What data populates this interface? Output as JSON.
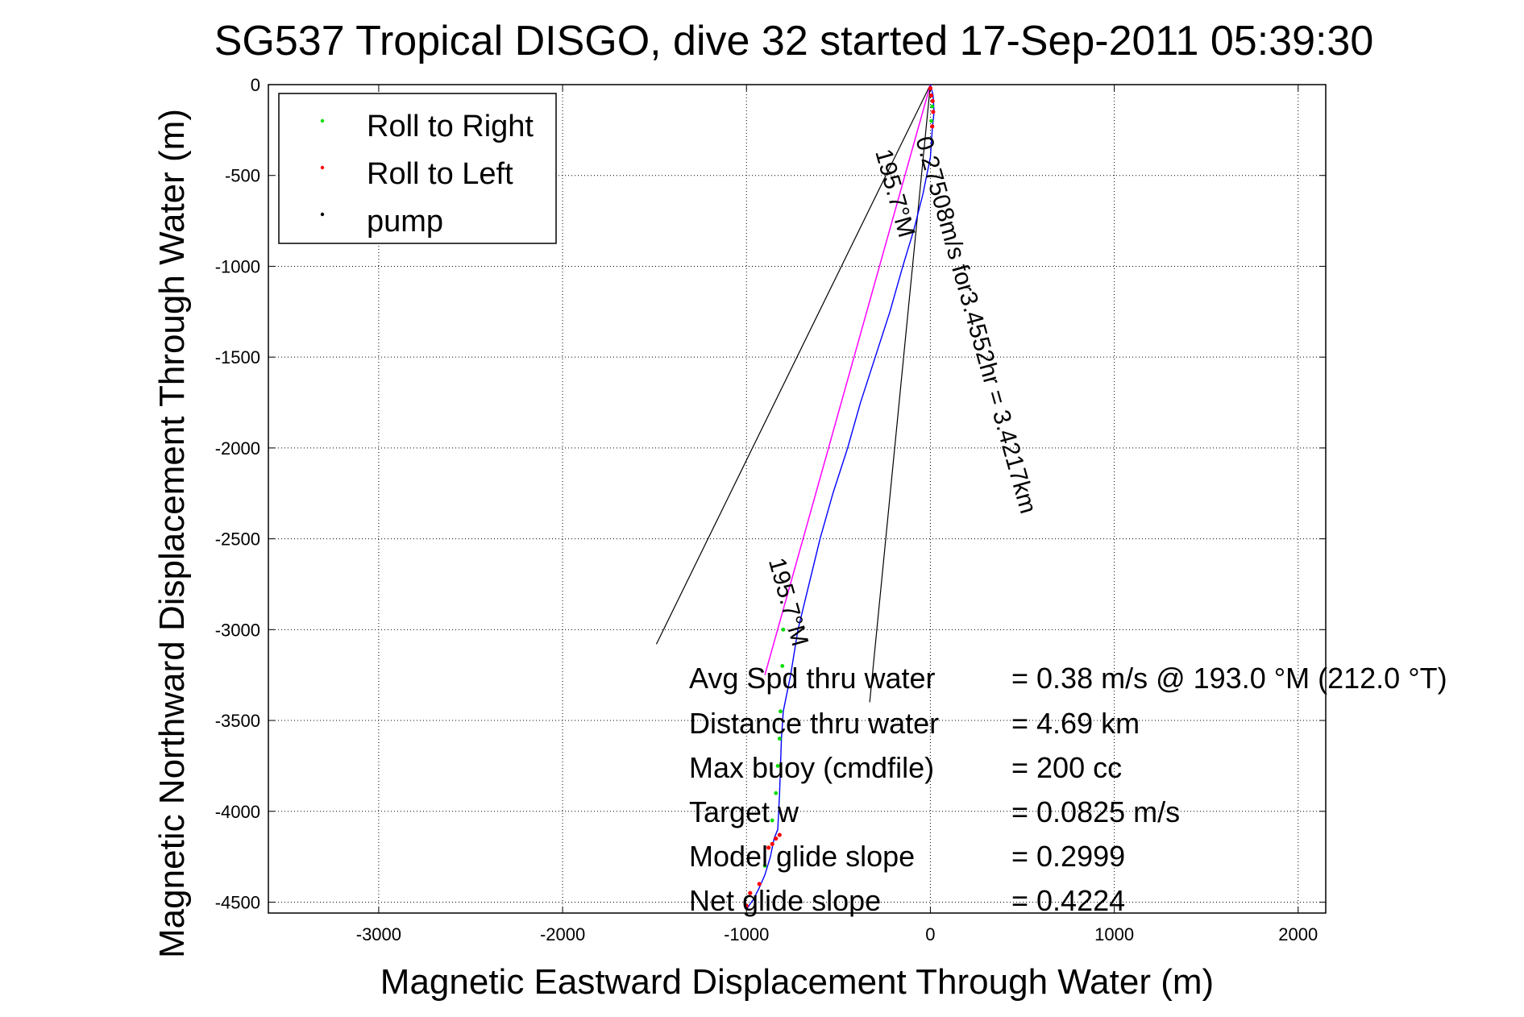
{
  "chart_data": {
    "type": "line",
    "title": "SG537 Tropical DISGO, dive 32 started 17-Sep-2011 05:39:30",
    "xlabel": "Magnetic Eastward Displacement Through Water (m)",
    "ylabel": "Magnetic Northward Displacement Through Water (m)",
    "xlim": [
      -3600,
      2150
    ],
    "ylim": [
      -4560,
      0
    ],
    "xticks": [
      -3000,
      -2000,
      -1000,
      0,
      1000,
      2000
    ],
    "yticks": [
      0,
      -500,
      -1000,
      -1500,
      -2000,
      -2500,
      -3000,
      -3500,
      -4000,
      -4500
    ],
    "grid": true,
    "legend_position": "top-left",
    "legend": [
      {
        "label": "Roll to Right",
        "color": "#00dd00"
      },
      {
        "label": "Roll to Left",
        "color": "#ff0000"
      },
      {
        "label": "pump",
        "color": "#000000"
      }
    ],
    "track": {
      "color": "#0000ff",
      "x": [
        0,
        15,
        20,
        10,
        0,
        -40,
        -90,
        -150,
        -220,
        -300,
        -380,
        -450,
        -530,
        -600,
        -660,
        -720,
        -760,
        -800,
        -810,
        -815,
        -820,
        -825,
        -830,
        -850,
        -870,
        -900,
        -930,
        -960,
        -1000
      ],
      "y": [
        0,
        -60,
        -150,
        -250,
        -400,
        -600,
        -800,
        -1000,
        -1250,
        -1500,
        -1750,
        -2000,
        -2250,
        -2500,
        -2750,
        -3000,
        -3250,
        -3450,
        -3600,
        -3750,
        -3900,
        -4000,
        -4100,
        -4150,
        -4250,
        -4350,
        -4420,
        -4480,
        -4540
      ]
    },
    "model_line": {
      "color": "#ff00ff",
      "x": [
        0,
        -900
      ],
      "y": [
        0,
        -3250
      ]
    },
    "roll_right": {
      "x": [
        10,
        5,
        -800,
        -805,
        -815,
        -820,
        -830,
        -840,
        -860,
        -900
      ],
      "y": [
        -120,
        -200,
        -3000,
        -3200,
        -3450,
        -3600,
        -3750,
        -3900,
        -4050,
        -4300
      ]
    },
    "roll_left": {
      "x": [
        0,
        5,
        12,
        15,
        10,
        -820,
        -840,
        -860,
        -880,
        -930,
        -980,
        -1000
      ],
      "y": [
        -20,
        -60,
        -90,
        -150,
        -230,
        -4130,
        -4150,
        -4180,
        -4200,
        -4400,
        -4450,
        -4520
      ]
    },
    "cone_lines": [
      {
        "x": [
          0,
          -1490
        ],
        "y": [
          0,
          -3080
        ]
      },
      {
        "x": [
          0,
          -330
        ],
        "y": [
          0,
          -3400
        ]
      }
    ],
    "rotated_annotations": [
      {
        "text": "0.27508m/s for3.4552hr = 3.4217km",
        "x": -80,
        "y": -300
      },
      {
        "text": "195.7°M",
        "x": -300,
        "y": -370
      },
      {
        "text": "195.7°M",
        "x": -880,
        "y": -2620
      }
    ],
    "stats": [
      {
        "label": "Avg Spd thru water",
        "value": "=  0.38 m/s @ 193.0 °M (212.0 °T)"
      },
      {
        "label": "Distance thru water",
        "value": "=  4.69 km"
      },
      {
        "label": "Max buoy (cmdfile)",
        "value": "= 200 cc"
      },
      {
        "label": "Target w",
        "value": "= 0.0825 m/s"
      },
      {
        "label": "Model glide slope",
        "value": "= 0.2999"
      },
      {
        "label": "Net glide slope",
        "value": "= 0.4224"
      }
    ]
  }
}
